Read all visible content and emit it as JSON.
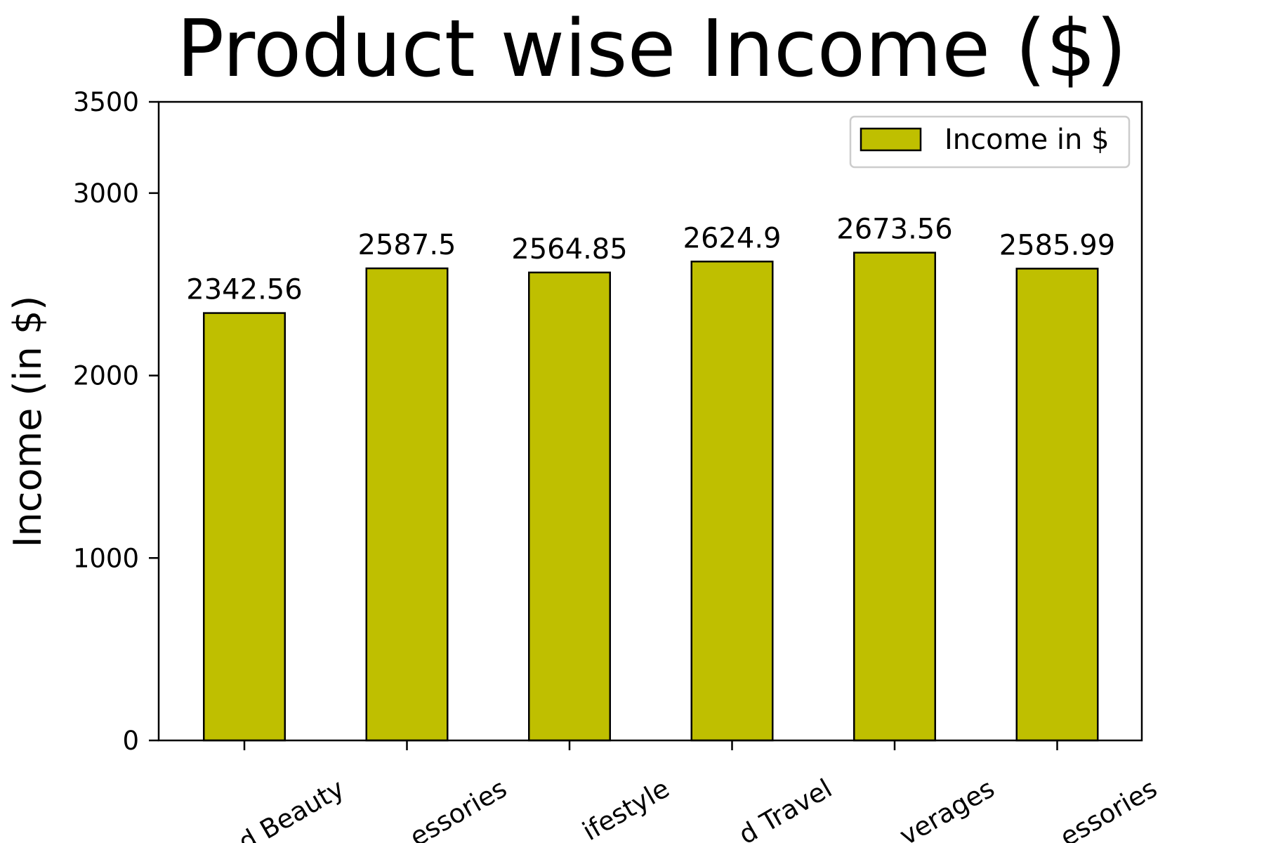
{
  "chart_data": {
    "type": "bar",
    "title": "Product wise Income ($)",
    "xlabel": "",
    "ylabel": "Income (in $)",
    "categories": [
      "Health and Beauty",
      "Electronic accessories",
      "Home and lifestyle",
      "Sports and travel",
      "Food and beverages",
      "Fashion accessories"
    ],
    "visible_category_fragments": [
      "d Beauty",
      "essories",
      "ifestyle",
      "d Travel",
      "verages",
      "essories"
    ],
    "series": [
      {
        "name": "Income in $",
        "values": [
          2342.56,
          2587.5,
          2564.85,
          2624.9,
          2673.56,
          2585.99
        ]
      }
    ],
    "value_labels": [
      "2342.56",
      "2587.5",
      "2564.85",
      "2624.9",
      "2673.56",
      "2585.99"
    ],
    "ylim": [
      0,
      3500
    ],
    "yticks": [
      0,
      1000,
      2000,
      3000,
      3500
    ],
    "grid": false,
    "legend_position": "top-right",
    "colors": {
      "bar_fill": "#bfbf00",
      "bar_edge": "#000000",
      "axis": "#000000",
      "legend_border": "#cccccc"
    }
  }
}
